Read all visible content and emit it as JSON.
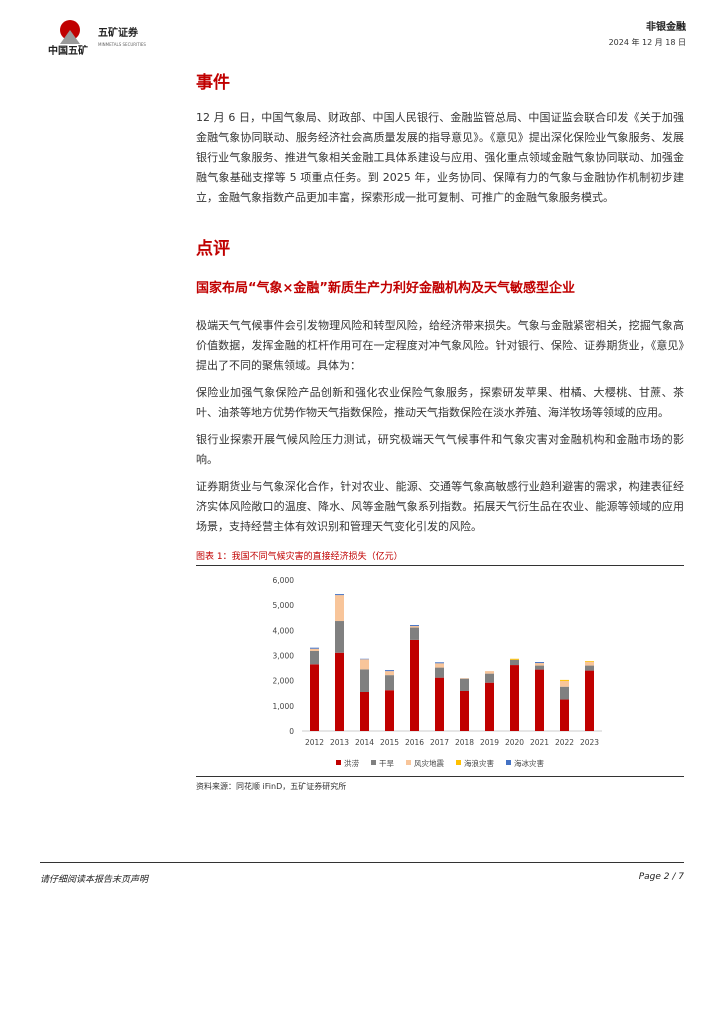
{
  "header": {
    "logo_text": "中国五矿",
    "brand": "五矿证券",
    "brand_en": "MINMETALS SECURITIES",
    "sector": "非银金融",
    "date": "2024 年 12 月 18 日"
  },
  "event": {
    "title": "事件",
    "body": "12 月 6 日，中国气象局、财政部、中国人民银行、金融监管总局、中国证监会联合印发《关于加强金融气象协同联动、服务经济社会高质量发展的指导意见》。《意见》提出深化保险业气象服务、发展银行业气象服务、推进气象相关金融工具体系建设与应用、强化重点领域金融气象协同联动、加强金融气象基础支撑等 5 项重点任务。到 2025 年，业务协同、保障有力的气象与金融协作机制初步建立，金融气象指数产品更加丰富，探索形成一批可复制、可推广的金融气象服务模式。"
  },
  "review": {
    "title": "点评",
    "subtitle": "国家布局“气象×金融”新质生产力利好金融机构及天气敏感型企业",
    "paragraphs": [
      "极端天气气候事件会引发物理风险和转型风险，给经济带来损失。气象与金融紧密相关，挖掘气象高价值数据，发挥金融的杠杆作用可在一定程度对冲气象风险。针对银行、保险、证券期货业，《意见》提出了不同的聚焦领域。具体为：",
      "保险业加强气象保险产品创新和强化农业保险气象服务，探索研发苹果、柑橘、大樱桃、甘蔗、茶叶、油茶等地方优势作物天气指数保险，推动天气指数保险在淡水养殖、海洋牧场等领域的应用。",
      "银行业探索开展气候风险压力测试，研究极端天气气候事件和气象灾害对金融机构和金融市场的影响。",
      "证券期货业与气象深化合作，针对农业、能源、交通等气象高敏感行业趋利避害的需求，构建表征经济实体风险敞口的温度、降水、风等金融气象系列指数。拓展天气衍生品在农业、能源等领域的应用场景，支持经营主体有效识别和管理天气变化引发的风险。"
    ]
  },
  "figure": {
    "caption": "图表 1：我国不同气候灾害的直接经济损失（亿元）",
    "source": "资料来源：同花顺 iFinD，五矿证券研究所"
  },
  "chart_data": {
    "type": "bar",
    "stacked": true,
    "categories": [
      "2012",
      "2013",
      "2014",
      "2015",
      "2016",
      "2017",
      "2018",
      "2019",
      "2020",
      "2021",
      "2022",
      "2023"
    ],
    "ylim": [
      0,
      6000
    ],
    "yticks": [
      "0",
      "1,000",
      "2,000",
      "3,000",
      "4,000",
      "5,000",
      "6,000"
    ],
    "grid": false,
    "legend": "bottom",
    "series": [
      {
        "name": "洪涝",
        "color": "#c00000",
        "values": [
          2650,
          3110,
          1550,
          1620,
          3620,
          2120,
          1590,
          1920,
          2620,
          2440,
          1250,
          2400
        ]
      },
      {
        "name": "干旱",
        "color": "#808080",
        "values": [
          530,
          1260,
          900,
          600,
          490,
          400,
          490,
          360,
          210,
          160,
          510,
          200
        ]
      },
      {
        "name": "风灾地震",
        "color": "#f8c59a",
        "values": [
          90,
          1030,
          400,
          160,
          60,
          170,
          20,
          100,
          0,
          100,
          230,
          150
        ]
      },
      {
        "name": "海浪灾害",
        "color": "#ffc000",
        "values": [
          0,
          0,
          0,
          0,
          0,
          0,
          0,
          0,
          40,
          0,
          40,
          30
        ]
      },
      {
        "name": "海冰灾害",
        "color": "#4472c4",
        "values": [
          40,
          40,
          20,
          40,
          40,
          40,
          0,
          0,
          0,
          40,
          0,
          0
        ]
      }
    ]
  },
  "footer": {
    "disclaimer": "请仔细阅读本报告末页声明",
    "page": "Page   2 / 7"
  }
}
